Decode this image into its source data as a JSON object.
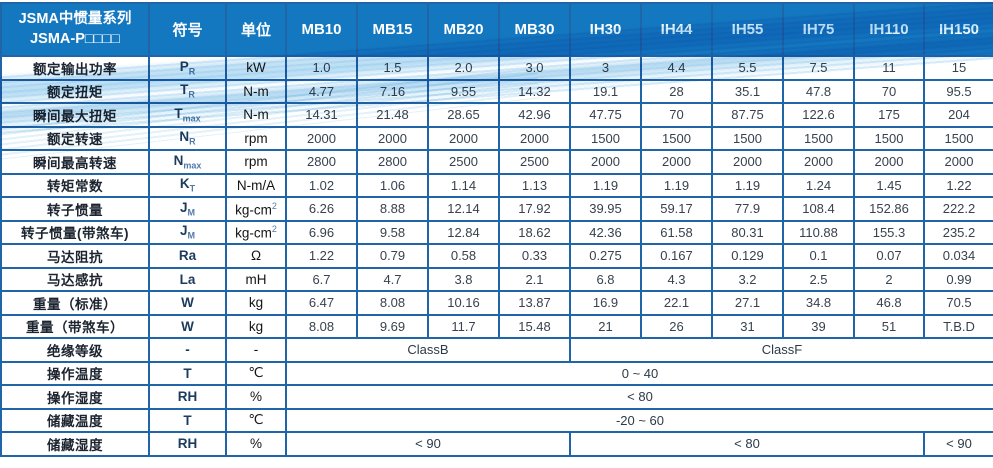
{
  "header": {
    "title_line1": "JSMA中惯量系列",
    "title_line2": "JSMA-P□□□□",
    "symbol_col": "符号",
    "unit_col": "单位",
    "models": [
      "MB10",
      "MB15",
      "MB20",
      "MB30",
      "IH30",
      "IH44",
      "IH55",
      "IH75",
      "IH110",
      "IH150"
    ]
  },
  "rows": [
    {
      "label": "额定输出功率",
      "symbol": "P",
      "sub": "R",
      "unit": "kW",
      "unit_sup": "",
      "values": [
        "1.0",
        "1.5",
        "2.0",
        "3.0",
        "3",
        "4.4",
        "5.5",
        "7.5",
        "11",
        "15"
      ]
    },
    {
      "label": "额定扭矩",
      "symbol": "T",
      "sub": "R",
      "unit": "N-m",
      "unit_sup": "",
      "values": [
        "4.77",
        "7.16",
        "9.55",
        "14.32",
        "19.1",
        "28",
        "35.1",
        "47.8",
        "70",
        "95.5"
      ]
    },
    {
      "label": "瞬间最大扭矩",
      "symbol": "T",
      "sub": "max",
      "unit": "N-m",
      "unit_sup": "",
      "values": [
        "14.31",
        "21.48",
        "28.65",
        "42.96",
        "47.75",
        "70",
        "87.75",
        "122.6",
        "175",
        "204"
      ]
    },
    {
      "label": "额定转速",
      "symbol": "N",
      "sub": "R",
      "unit": "rpm",
      "unit_sup": "",
      "values": [
        "2000",
        "2000",
        "2000",
        "2000",
        "1500",
        "1500",
        "1500",
        "1500",
        "1500",
        "1500"
      ]
    },
    {
      "label": "瞬间最高转速",
      "symbol": "N",
      "sub": "max",
      "unit": "rpm",
      "unit_sup": "",
      "values": [
        "2800",
        "2800",
        "2500",
        "2500",
        "2000",
        "2000",
        "2000",
        "2000",
        "2000",
        "2000"
      ]
    },
    {
      "label": "转矩常数",
      "symbol": "K",
      "sub": "T",
      "unit": "N-m/A",
      "unit_sup": "",
      "values": [
        "1.02",
        "1.06",
        "1.14",
        "1.13",
        "1.19",
        "1.19",
        "1.19",
        "1.24",
        "1.45",
        "1.22"
      ]
    },
    {
      "label": "转子惯量",
      "symbol": "J",
      "sub": "M",
      "unit": "kg-cm",
      "unit_sup": "2",
      "values": [
        "6.26",
        "8.88",
        "12.14",
        "17.92",
        "39.95",
        "59.17",
        "77.9",
        "108.4",
        "152.86",
        "222.2"
      ]
    },
    {
      "label": "转子惯量(带煞车)",
      "symbol": "J",
      "sub": "M",
      "unit": "kg-cm",
      "unit_sup": "2",
      "values": [
        "6.96",
        "9.58",
        "12.84",
        "18.62",
        "42.36",
        "61.58",
        "80.31",
        "110.88",
        "155.3",
        "235.2"
      ]
    },
    {
      "label": "马达阻抗",
      "symbol": "Ra",
      "sub": "",
      "unit": "Ω",
      "unit_sup": "",
      "values": [
        "1.22",
        "0.79",
        "0.58",
        "0.33",
        "0.275",
        "0.167",
        "0.129",
        "0.1",
        "0.07",
        "0.034"
      ]
    },
    {
      "label": "马达感抗",
      "symbol": "La",
      "sub": "",
      "unit": "mH",
      "unit_sup": "",
      "values": [
        "6.7",
        "4.7",
        "3.8",
        "2.1",
        "6.8",
        "4.3",
        "3.2",
        "2.5",
        "2",
        "0.99"
      ]
    },
    {
      "label": "重量（标准）",
      "symbol": "W",
      "sub": "",
      "unit": "kg",
      "unit_sup": "",
      "values": [
        "6.47",
        "8.08",
        "10.16",
        "13.87",
        "16.9",
        "22.1",
        "27.1",
        "34.8",
        "46.8",
        "70.5"
      ]
    },
    {
      "label": "重量（带煞车）",
      "symbol": "W",
      "sub": "",
      "unit": "kg",
      "unit_sup": "",
      "values": [
        "8.08",
        "9.69",
        "11.7",
        "15.48",
        "21",
        "26",
        "31",
        "39",
        "51",
        "T.B.D"
      ]
    }
  ],
  "span_rows": [
    {
      "label": "绝缘等级",
      "symbol": "-",
      "unit": "-",
      "cells": [
        {
          "text": "ClassB",
          "span": 4
        },
        {
          "text": "ClassF",
          "span": 6
        }
      ]
    },
    {
      "label": "操作温度",
      "symbol": "T",
      "unit": "℃",
      "cells": [
        {
          "text": "0 ~ 40",
          "span": 10
        }
      ]
    },
    {
      "label": "操作湿度",
      "symbol": "RH",
      "unit": "%",
      "cells": [
        {
          "text": "< 80",
          "span": 10
        }
      ]
    },
    {
      "label": "储藏温度",
      "symbol": "T",
      "unit": "℃",
      "cells": [
        {
          "text": "-20 ~ 60",
          "span": 10
        }
      ]
    },
    {
      "label": "储藏湿度",
      "symbol": "RH",
      "unit": "%",
      "cells": [
        {
          "text": "< 90",
          "span": 4
        },
        {
          "text": "< 80",
          "span": 5
        },
        {
          "text": "< 90",
          "span": 1
        }
      ]
    }
  ],
  "colors": {
    "header_bg": "#1478c0",
    "grid_border": "#2165a9",
    "swoosh_blue": "#8ec7ea"
  }
}
